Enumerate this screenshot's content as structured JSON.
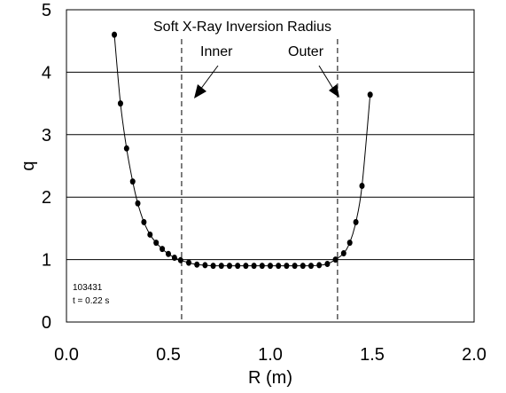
{
  "chart_data": {
    "type": "scatter",
    "xlabel": "R (m)",
    "ylabel": "q",
    "xlim": [
      0.0,
      2.0
    ],
    "ylim": [
      0,
      5
    ],
    "x_ticks": [
      "0.0",
      "0.5",
      "1.0",
      "1.5",
      "2.0"
    ],
    "y_ticks": [
      "0",
      "1",
      "2",
      "3",
      "4",
      "5"
    ],
    "grid": "horizontal",
    "series": [
      {
        "points": [
          {
            "x": 0.235,
            "y": 4.6
          },
          {
            "x": 0.265,
            "y": 3.5
          },
          {
            "x": 0.295,
            "y": 2.78
          },
          {
            "x": 0.325,
            "y": 2.25
          },
          {
            "x": 0.35,
            "y": 1.9
          },
          {
            "x": 0.38,
            "y": 1.6
          },
          {
            "x": 0.41,
            "y": 1.4
          },
          {
            "x": 0.44,
            "y": 1.27
          },
          {
            "x": 0.47,
            "y": 1.17
          },
          {
            "x": 0.5,
            "y": 1.09
          },
          {
            "x": 0.53,
            "y": 1.03
          },
          {
            "x": 0.56,
            "y": 0.99
          },
          {
            "x": 0.6,
            "y": 0.95
          },
          {
            "x": 0.64,
            "y": 0.92
          },
          {
            "x": 0.68,
            "y": 0.91
          },
          {
            "x": 0.72,
            "y": 0.9
          },
          {
            "x": 0.76,
            "y": 0.9
          },
          {
            "x": 0.8,
            "y": 0.9
          },
          {
            "x": 0.84,
            "y": 0.9
          },
          {
            "x": 0.88,
            "y": 0.9
          },
          {
            "x": 0.92,
            "y": 0.9
          },
          {
            "x": 0.96,
            "y": 0.9
          },
          {
            "x": 1.0,
            "y": 0.9
          },
          {
            "x": 1.04,
            "y": 0.9
          },
          {
            "x": 1.08,
            "y": 0.9
          },
          {
            "x": 1.12,
            "y": 0.9
          },
          {
            "x": 1.16,
            "y": 0.9
          },
          {
            "x": 1.2,
            "y": 0.9
          },
          {
            "x": 1.24,
            "y": 0.91
          },
          {
            "x": 1.28,
            "y": 0.93
          },
          {
            "x": 1.32,
            "y": 1.0
          },
          {
            "x": 1.36,
            "y": 1.1
          },
          {
            "x": 1.39,
            "y": 1.27
          },
          {
            "x": 1.42,
            "y": 1.6
          },
          {
            "x": 1.45,
            "y": 2.18
          },
          {
            "x": 1.49,
            "y": 3.64
          }
        ]
      }
    ],
    "vertical_lines": [
      {
        "x": 0.565,
        "style": "dashed",
        "label": "Inner"
      },
      {
        "x": 1.33,
        "style": "dashed",
        "label": "Outer"
      }
    ],
    "annotations": {
      "title": "Soft X-Ray Inversion Radius",
      "shot": "103431",
      "time": "t = 0.22 s"
    }
  }
}
